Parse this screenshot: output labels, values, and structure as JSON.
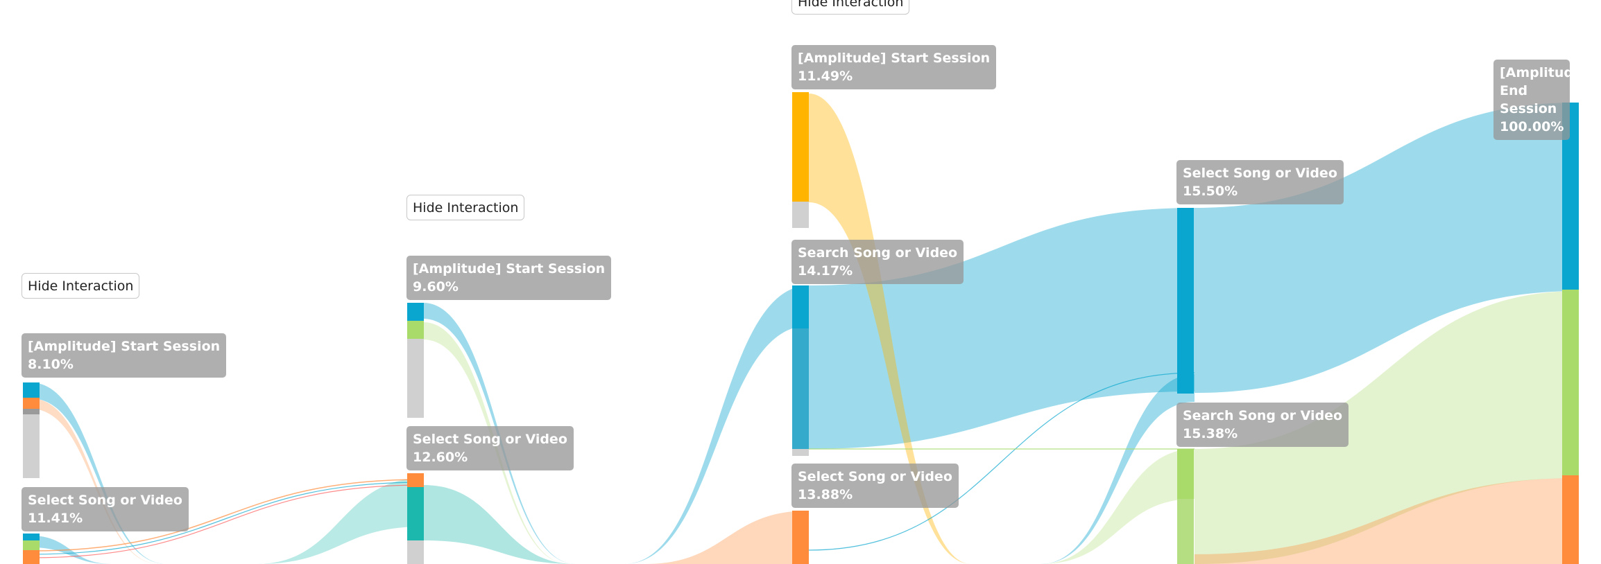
{
  "buttons": {
    "hide_interaction": "Hide Interaction"
  },
  "colors": {
    "blue": "#0aa6cf",
    "green": "#a8db6a",
    "orange": "#ff8c3c",
    "yellow": "#ffb400",
    "teal": "#1cb8ad",
    "gray": "#d0d0d0"
  },
  "chart_data": {
    "type": "sankey",
    "columns": [
      {
        "nodes": [
          {
            "name": "[Amplitude] Start Session",
            "percent": "8.10%"
          },
          {
            "name": "Select Song or Video",
            "percent": "11.41%"
          }
        ]
      },
      {
        "nodes": [
          {
            "name": "[Amplitude] Start Session",
            "percent": "9.60%"
          },
          {
            "name": "Select Song or Video",
            "percent": "12.60%"
          }
        ]
      },
      {
        "nodes": [
          {
            "name": "[Amplitude] Start Session",
            "percent": "11.49%"
          },
          {
            "name": "Search Song or Video",
            "percent": "14.17%"
          },
          {
            "name": "Select Song or Video",
            "percent": "13.88%"
          }
        ]
      },
      {
        "nodes": [
          {
            "name": "Select Song or Video",
            "percent": "15.50%"
          },
          {
            "name": "Search Song or Video",
            "percent": "15.38%"
          }
        ]
      },
      {
        "nodes": [
          {
            "name": "[Amplitude] End Session",
            "percent": "100.00%"
          }
        ]
      }
    ],
    "flows": [
      {
        "from": "Search Song or Video (step 3)",
        "to": "Select Song or Video (step 4)",
        "color": "blue"
      },
      {
        "from": "Select Song or Video (step 4)",
        "to": "[Amplitude] End Session",
        "color": "blue"
      },
      {
        "from": "Search Song or Video (step 4)",
        "to": "[Amplitude] End Session",
        "color": "green"
      },
      {
        "from": "[Amplitude] Start Session (step 3)",
        "to": "Search Song or Video (step 4)",
        "color": "yellow"
      },
      {
        "from": "Select Song or Video (step 2)",
        "to": "Search Song or Video (step 3)",
        "color": "teal"
      }
    ]
  }
}
